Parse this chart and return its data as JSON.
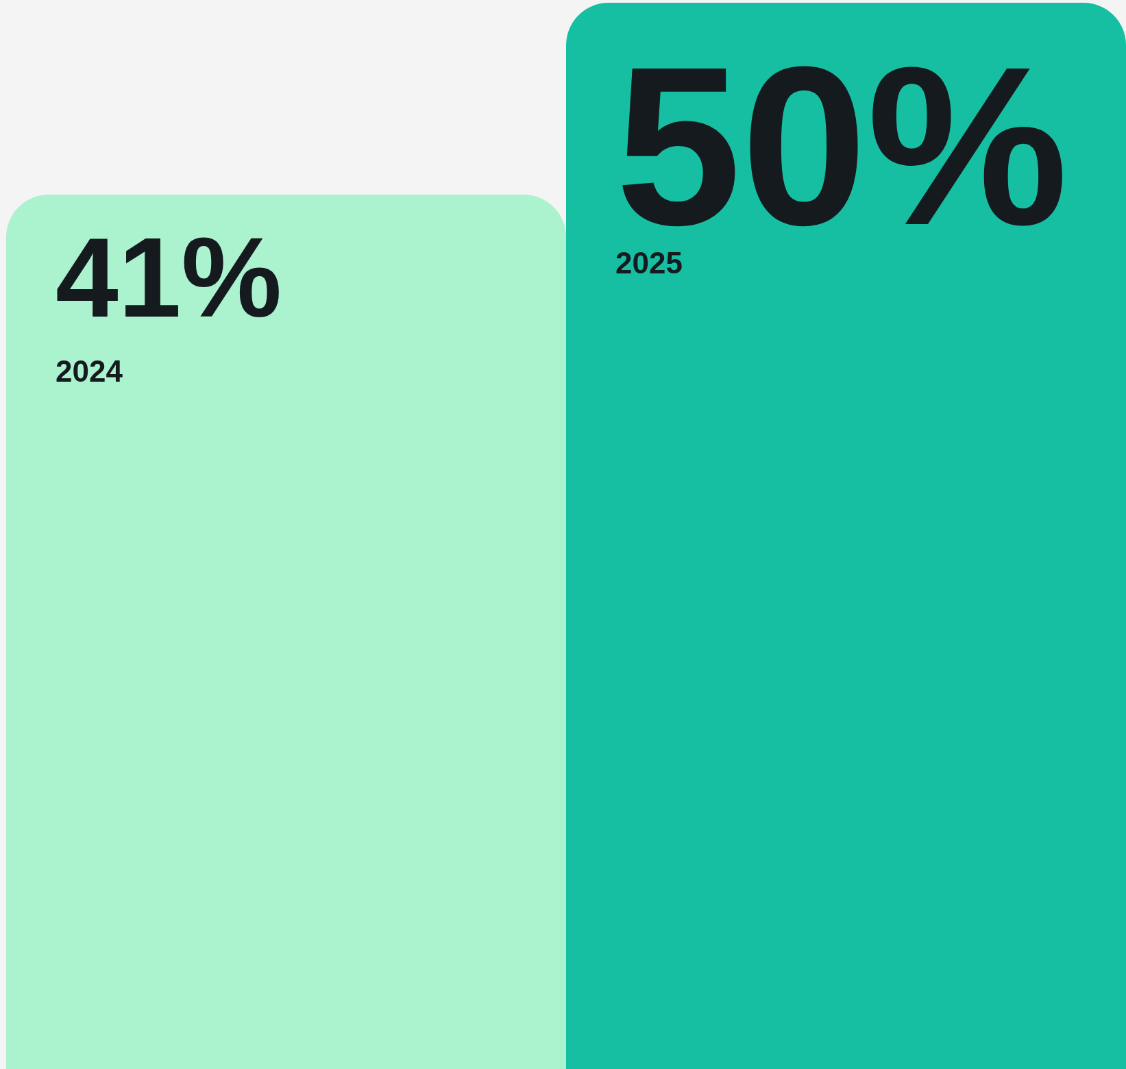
{
  "chart_data": {
    "type": "bar",
    "categories": [
      "2024",
      "2025"
    ],
    "values": [
      41,
      50
    ],
    "value_labels": [
      "41%",
      "50%"
    ],
    "colors": [
      "#abf2ce",
      "#17bfa2"
    ],
    "grid": false,
    "tick_labels": false
  }
}
